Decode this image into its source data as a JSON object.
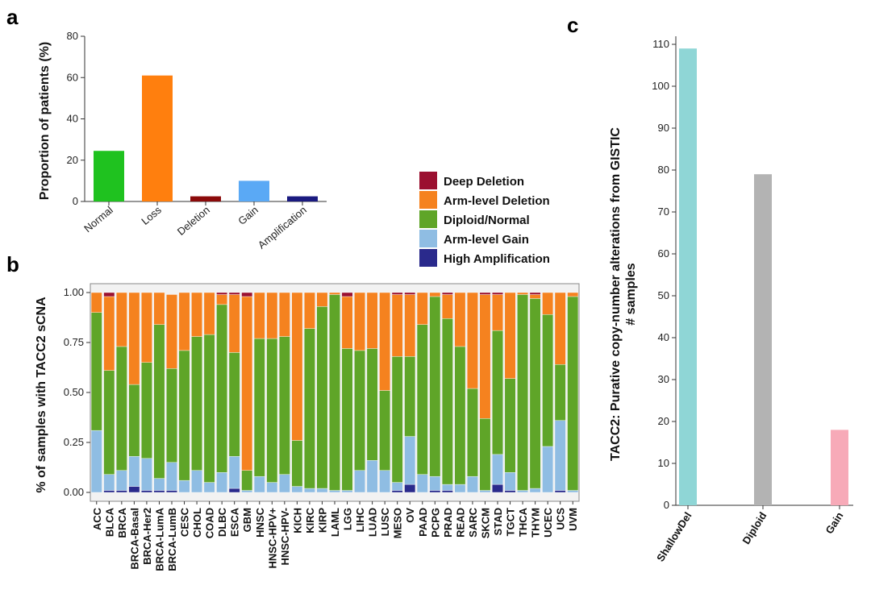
{
  "panels": {
    "a": "a",
    "b": "b",
    "c": "c"
  },
  "legend": {
    "items": [
      {
        "label": "Deep Deletion",
        "color": "#9b1030"
      },
      {
        "label": "Arm-level Deletion",
        "color": "#f5821f"
      },
      {
        "label": "Diploid/Normal",
        "color": "#5fa528"
      },
      {
        "label": "Arm-level Gain",
        "color": "#8fbde3"
      },
      {
        "label": "High Amplification",
        "color": "#2a2a8c"
      }
    ]
  },
  "chart_data": [
    {
      "id": "a",
      "type": "bar",
      "title": "",
      "xlabel": "",
      "ylabel": "Proportion of patients (%)",
      "ylim": [
        0,
        80
      ],
      "yticks": [
        0,
        20,
        40,
        60,
        80
      ],
      "categories": [
        "Normal",
        "Loss",
        "Deletion",
        "Gain",
        "Amplification"
      ],
      "values": [
        24.5,
        61,
        2.5,
        10,
        2.5
      ],
      "colors": [
        "#1fc21f",
        "#ff7f0e",
        "#8b0a0a",
        "#5aa9f5",
        "#1a1a80"
      ]
    },
    {
      "id": "b",
      "type": "bar",
      "stacked": true,
      "title": "",
      "xlabel": "",
      "ylabel": "% of samples with TACC2 sCNA",
      "ylim": [
        0,
        1
      ],
      "yticks": [
        "0.00",
        "0.25",
        "0.50",
        "0.75",
        "1.00"
      ],
      "categories": [
        "ACC",
        "BLCA",
        "BRCA",
        "BRCA-Basal",
        "BRCA-Her2",
        "BRCA-LumA",
        "BRCA-LumB",
        "CESC",
        "CHOL",
        "COAD",
        "DLBC",
        "ESCA",
        "GBM",
        "HNSC",
        "HNSC-HPV+",
        "HNSC-HPV-",
        "KICH",
        "KIRC",
        "KIRP",
        "LAML",
        "LGG",
        "LIHC",
        "LUAD",
        "LUSC",
        "MESO",
        "OV",
        "PAAD",
        "PCPG",
        "PRAD",
        "READ",
        "SARC",
        "SKCM",
        "STAD",
        "TGCT",
        "THCA",
        "THYM",
        "UCEC",
        "UCS",
        "UVM"
      ],
      "series": [
        {
          "name": "High Amplification",
          "values": [
            0,
            0.01,
            0.01,
            0.03,
            0.01,
            0.01,
            0.01,
            0,
            0,
            0,
            0,
            0.02,
            0,
            0,
            0,
            0,
            0,
            0,
            0,
            0,
            0,
            0,
            0,
            0,
            0.01,
            0.04,
            0,
            0.01,
            0.01,
            0,
            0,
            0,
            0.04,
            0.01,
            0,
            0,
            0,
            0.01,
            0
          ]
        },
        {
          "name": "Arm-level Gain",
          "values": [
            0.31,
            0.08,
            0.1,
            0.15,
            0.16,
            0.06,
            0.14,
            0.06,
            0.11,
            0.05,
            0.1,
            0.16,
            0.01,
            0.08,
            0.05,
            0.09,
            0.03,
            0.02,
            0.02,
            0.01,
            0.01,
            0.11,
            0.16,
            0.11,
            0.04,
            0.24,
            0.09,
            0.07,
            0.03,
            0.04,
            0.08,
            0.01,
            0.15,
            0.09,
            0.01,
            0.02,
            0.23,
            0.35,
            0.01
          ]
        },
        {
          "name": "Diploid/Normal",
          "values": [
            0.59,
            0.52,
            0.62,
            0.36,
            0.48,
            0.77,
            0.47,
            0.65,
            0.67,
            0.74,
            0.84,
            0.52,
            0.1,
            0.69,
            0.72,
            0.69,
            0.23,
            0.8,
            0.91,
            0.98,
            0.71,
            0.6,
            0.56,
            0.4,
            0.63,
            0.4,
            0.75,
            0.9,
            0.83,
            0.69,
            0.44,
            0.36,
            0.62,
            0.47,
            0.98,
            0.95,
            0.66,
            0.28,
            0.97
          ]
        },
        {
          "name": "Arm-level Deletion",
          "values": [
            0.1,
            0.37,
            0.27,
            0.46,
            0.35,
            0.16,
            0.37,
            0.29,
            0.22,
            0.21,
            0.05,
            0.29,
            0.87,
            0.23,
            0.23,
            0.22,
            0.74,
            0.18,
            0.07,
            0.01,
            0.26,
            0.29,
            0.28,
            0.49,
            0.31,
            0.31,
            0.16,
            0.02,
            0.12,
            0.27,
            0.48,
            0.62,
            0.18,
            0.43,
            0.01,
            0.02,
            0.11,
            0.36,
            0.02
          ]
        },
        {
          "name": "Deep Deletion",
          "values": [
            0,
            0.02,
            0,
            0,
            0,
            0,
            0,
            0,
            0,
            0,
            0.01,
            0.01,
            0.02,
            0,
            0,
            0,
            0,
            0,
            0,
            0,
            0.02,
            0,
            0,
            0,
            0.01,
            0.01,
            0,
            0,
            0.01,
            0,
            0,
            0.01,
            0.01,
            0,
            0,
            0.01,
            0,
            0,
            0
          ]
        }
      ]
    },
    {
      "id": "c",
      "type": "bar",
      "title": "",
      "xlabel": "",
      "ylabel": "TACC2: Purative copy-number alterations from GISTIC",
      "ylabel2": "# samples",
      "ylim": [
        0,
        110
      ],
      "yticks": [
        0,
        10,
        20,
        30,
        40,
        50,
        60,
        70,
        80,
        90,
        100,
        110
      ],
      "categories": [
        "ShallowDel",
        "Diploid",
        "Gain"
      ],
      "values": [
        109,
        79,
        18
      ],
      "colors": [
        "#8fd6d6",
        "#b3b3b3",
        "#f7aab8"
      ]
    }
  ]
}
